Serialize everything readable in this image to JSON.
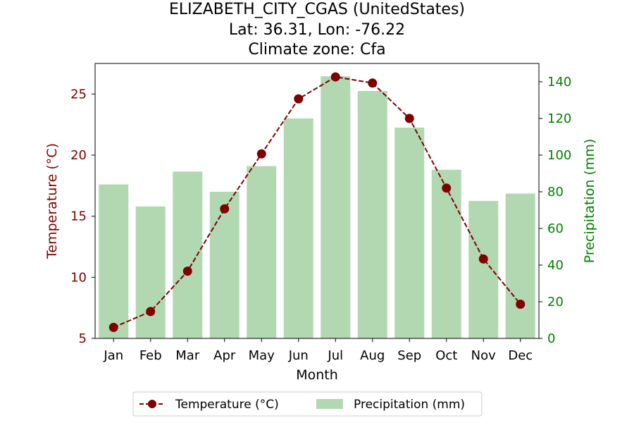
{
  "chart_data": {
    "type": "bar+line",
    "title_lines": [
      "ELIZABETH_CITY_CGAS (UnitedStates)",
      "Lat: 36.31, Lon: -76.22",
      "Climate zone: Cfa"
    ],
    "categories": [
      "Jan",
      "Feb",
      "Mar",
      "Apr",
      "May",
      "Jun",
      "Jul",
      "Aug",
      "Sep",
      "Oct",
      "Nov",
      "Dec"
    ],
    "xlabel": "Month",
    "temperature": {
      "name": "Temperature (°C)",
      "values": [
        5.9,
        7.2,
        10.5,
        15.6,
        20.1,
        24.6,
        26.4,
        25.9,
        23.0,
        17.3,
        11.5,
        7.8
      ],
      "color": "#800000",
      "ylabel": "Temperature (°C)",
      "ylim": [
        5,
        27.5
      ],
      "ticks": [
        5,
        10,
        15,
        20,
        25
      ]
    },
    "precipitation": {
      "name": "Precipitation (mm)",
      "values": [
        84,
        72,
        91,
        80,
        94,
        120,
        143,
        135,
        115,
        92,
        75,
        79
      ],
      "color": "#b2d8b2",
      "ylabel": "Precipitation (mm)",
      "ylim": [
        0,
        150
      ],
      "ticks": [
        0,
        20,
        40,
        60,
        80,
        100,
        120,
        140
      ],
      "axis_color": "#008000"
    },
    "grid": false,
    "legend_position": "bottom-center"
  }
}
